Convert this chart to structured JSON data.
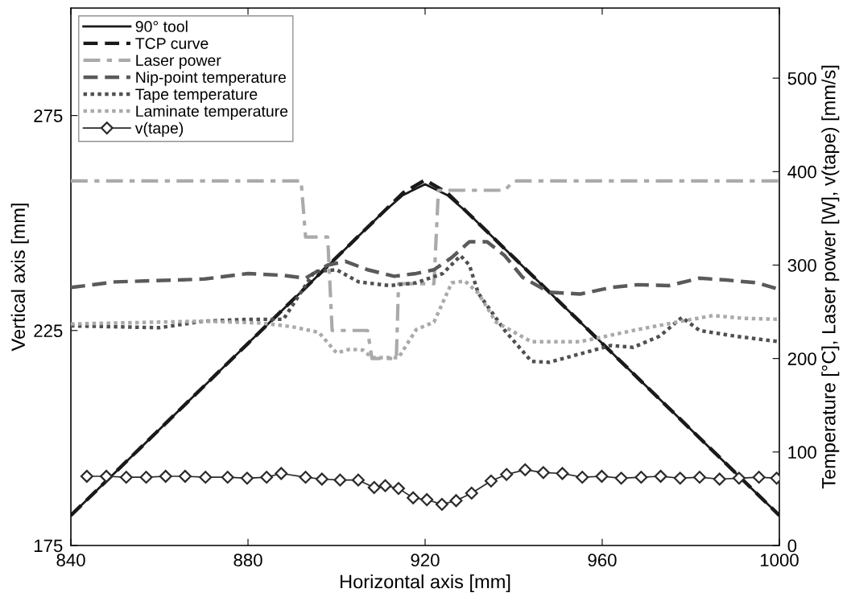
{
  "chart_data": {
    "type": "line",
    "xlabel": "Horizontal axis [mm]",
    "ylabel": "Vertical axis [mm]",
    "y2label": "Temperature [°C], Laser power [W], v(tape) [mm/s]",
    "xlim": [
      840,
      1000
    ],
    "xticks": [
      840,
      880,
      920,
      960,
      1000
    ],
    "ylim": [
      175,
      300
    ],
    "yticks": [
      175,
      225,
      275
    ],
    "y2lim": [
      0,
      575
    ],
    "y2ticks": [
      0,
      100,
      200,
      300,
      400,
      500
    ],
    "grid": false,
    "legend": "top left",
    "series": [
      {
        "name": "90° tool",
        "color": "#1a1a1a",
        "line_style": "solid",
        "marker": "none",
        "x": [
          840,
          850,
          860,
          870,
          880,
          890,
          900,
          910,
          915,
          920,
          925,
          930,
          940,
          950,
          960,
          970,
          980,
          990,
          1000
        ],
        "values": [
          182,
          192,
          202,
          212,
          222,
          232,
          242,
          252,
          256.5,
          259,
          256.5,
          252,
          242,
          232,
          222,
          212,
          202,
          192,
          182
        ]
      },
      {
        "name": "TCP curve",
        "color": "#1a1a1a",
        "line_style": "dashed",
        "marker": "none",
        "x": [
          840,
          850,
          860,
          870,
          880,
          890,
          900,
          910,
          915,
          920,
          925,
          930,
          940,
          950,
          960,
          970,
          980,
          990,
          1000
        ],
        "values": [
          182,
          192,
          202,
          212,
          222,
          232,
          242,
          252,
          257,
          260,
          257,
          252,
          242,
          232,
          222,
          212,
          202,
          192,
          182
        ]
      },
      {
        "name": "Laser power",
        "color": "#aaaaaa",
        "line_style": "dashdot",
        "marker": "none",
        "axis": "y2",
        "x": [
          840,
          892,
          893,
          898,
          899,
          907,
          908,
          913.5,
          914,
          922,
          923,
          938,
          940,
          1000
        ],
        "values": [
          390,
          390,
          330,
          330,
          230,
          230,
          200,
          200,
          280,
          280,
          380,
          380,
          390,
          390
        ]
      },
      {
        "name": "Nip-point temperature",
        "color": "#5a5a5a",
        "line_style": "dashed",
        "marker": "none",
        "axis": "y2",
        "x": [
          840,
          850,
          870,
          880,
          888,
          893,
          898,
          902,
          907,
          913,
          918,
          922,
          926,
          930,
          934,
          938,
          942,
          948,
          955,
          962,
          968,
          975,
          982,
          988,
          995,
          1000
        ],
        "values": [
          276,
          282,
          285,
          291,
          289,
          286,
          300,
          304,
          295,
          288,
          291,
          295,
          308,
          325,
          325,
          310,
          287,
          271,
          269,
          276,
          279,
          278,
          286,
          284,
          281,
          274
        ]
      },
      {
        "name": "Tape temperature",
        "color": "#505050",
        "line_style": "dotted",
        "marker": "none",
        "axis": "y2",
        "x": [
          840,
          860,
          870,
          880,
          888,
          895,
          900,
          905,
          912,
          918,
          924,
          928,
          930,
          932,
          938,
          944,
          948,
          955,
          962,
          967,
          973,
          978,
          982,
          990,
          1000
        ],
        "values": [
          235,
          233,
          240,
          242,
          242,
          293,
          295,
          282,
          278,
          281,
          291,
          310,
          300,
          270,
          230,
          197,
          196,
          205,
          214,
          212,
          224,
          244,
          230,
          224,
          218
        ]
      },
      {
        "name": "Laminate temperature",
        "color": "#aaaaaa",
        "line_style": "dotted",
        "marker": "none",
        "axis": "y2",
        "x": [
          840,
          870,
          883,
          890,
          896,
          900,
          903,
          906,
          908,
          914,
          918,
          922,
          926,
          929,
          932,
          936,
          944,
          955,
          968,
          978,
          985,
          992,
          1000
        ],
        "values": [
          237,
          240,
          238,
          234,
          228,
          206,
          210,
          209,
          201,
          201,
          231,
          239,
          281,
          283,
          270,
          239,
          218,
          218,
          231,
          240,
          246,
          243,
          242
        ]
      },
      {
        "name": "v(tape)",
        "color": "#2a2a2a",
        "line_style": "solid",
        "marker": "diamond",
        "axis": "y2",
        "x": [
          843.6,
          848,
          852.5,
          857,
          861.4,
          865.8,
          870.4,
          875.4,
          879.8,
          884.2,
          887.5,
          893,
          896.7,
          900.8,
          904.9,
          908.5,
          911,
          914,
          917.3,
          920.4,
          923.8,
          927,
          930.5,
          934.9,
          938.4,
          942.6,
          946.7,
          951,
          955.5,
          959.9,
          964.3,
          968.8,
          973.2,
          977.6,
          982,
          986.5,
          990.9,
          995.4,
          999.4
        ],
        "values": [
          74,
          74,
          73,
          73,
          74,
          74,
          73,
          73,
          72,
          73,
          77,
          73,
          71,
          70,
          70,
          62,
          64,
          61,
          51,
          49,
          44,
          48,
          56,
          69,
          76,
          81,
          78,
          77,
          73,
          74,
          72,
          73,
          74,
          72,
          73,
          71,
          72,
          73,
          72
        ]
      }
    ]
  }
}
